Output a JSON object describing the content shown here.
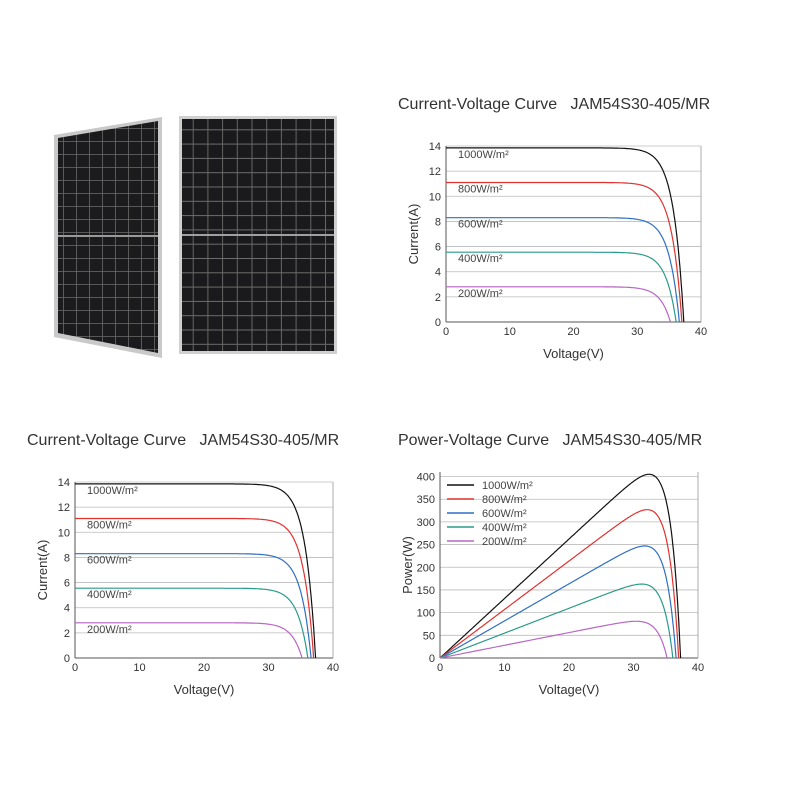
{
  "images": {
    "panel_angled": "solar-panel-angled",
    "panel_front": "solar-panel-front"
  },
  "colors": {
    "1000W/m²": "#111111",
    "800W/m²": "#e0322f",
    "600W/m²": "#2e6fc4",
    "400W/m²": "#2a9a8a",
    "200W/m²": "#b766c4",
    "grid": "#bbbbbb"
  },
  "chart_data": [
    {
      "id": "iv_top",
      "type": "line",
      "title": "Current-Voltage Curve   JAM54S30-405/MR",
      "xlabel": "Voltage(V)",
      "ylabel": "Current(A)",
      "xlim": [
        0,
        40
      ],
      "ylim": [
        0,
        14
      ],
      "xticks": [
        0,
        10,
        20,
        30,
        40
      ],
      "yticks": [
        0,
        2,
        4,
        6,
        8,
        10,
        12,
        14
      ],
      "grid": "horizontal",
      "legend_style": "inline",
      "series": [
        {
          "name": "1000W/m²",
          "isc": 13.85,
          "voc": 37.3
        },
        {
          "name": "800W/m²",
          "isc": 11.1,
          "voc": 37.0
        },
        {
          "name": "600W/m²",
          "isc": 8.3,
          "voc": 36.6
        },
        {
          "name": "400W/m²",
          "isc": 5.55,
          "voc": 36.1
        },
        {
          "name": "200W/m²",
          "isc": 2.8,
          "voc": 35.2
        }
      ]
    },
    {
      "id": "iv_bottom",
      "type": "line",
      "title": "Current-Voltage Curve   JAM54S30-405/MR",
      "xlabel": "Voltage(V)",
      "ylabel": "Current(A)",
      "xlim": [
        0,
        40
      ],
      "ylim": [
        0,
        14
      ],
      "xticks": [
        0,
        10,
        20,
        30,
        40
      ],
      "yticks": [
        0,
        2,
        4,
        6,
        8,
        10,
        12,
        14
      ],
      "grid": "horizontal",
      "legend_style": "inline",
      "series": [
        {
          "name": "1000W/m²",
          "isc": 13.85,
          "voc": 37.3
        },
        {
          "name": "800W/m²",
          "isc": 11.1,
          "voc": 37.0
        },
        {
          "name": "600W/m²",
          "isc": 8.3,
          "voc": 36.6
        },
        {
          "name": "400W/m²",
          "isc": 5.55,
          "voc": 36.1
        },
        {
          "name": "200W/m²",
          "isc": 2.8,
          "voc": 35.2
        }
      ]
    },
    {
      "id": "pv",
      "type": "line",
      "title": "Power-Voltage Curve   JAM54S30-405/MR",
      "xlabel": "Voltage(V)",
      "ylabel": "Power(W)",
      "xlim": [
        0,
        40
      ],
      "ylim": [
        0,
        410
      ],
      "xticks": [
        0,
        10,
        20,
        30,
        40
      ],
      "yticks": [
        0,
        50,
        100,
        150,
        200,
        250,
        300,
        350,
        400
      ],
      "grid": "horizontal",
      "legend_style": "box-top-left",
      "series": [
        {
          "name": "1000W/m²",
          "pmax": 405,
          "vmp": 30.8,
          "voc": 37.3
        },
        {
          "name": "800W/m²",
          "pmax": 327,
          "vmp": 30.8,
          "voc": 37.0
        },
        {
          "name": "600W/m²",
          "pmax": 247,
          "vmp": 30.6,
          "voc": 36.6
        },
        {
          "name": "400W/m²",
          "pmax": 163,
          "vmp": 30.4,
          "voc": 36.1
        },
        {
          "name": "200W/m²",
          "pmax": 81,
          "vmp": 30.2,
          "voc": 35.2
        }
      ]
    }
  ]
}
